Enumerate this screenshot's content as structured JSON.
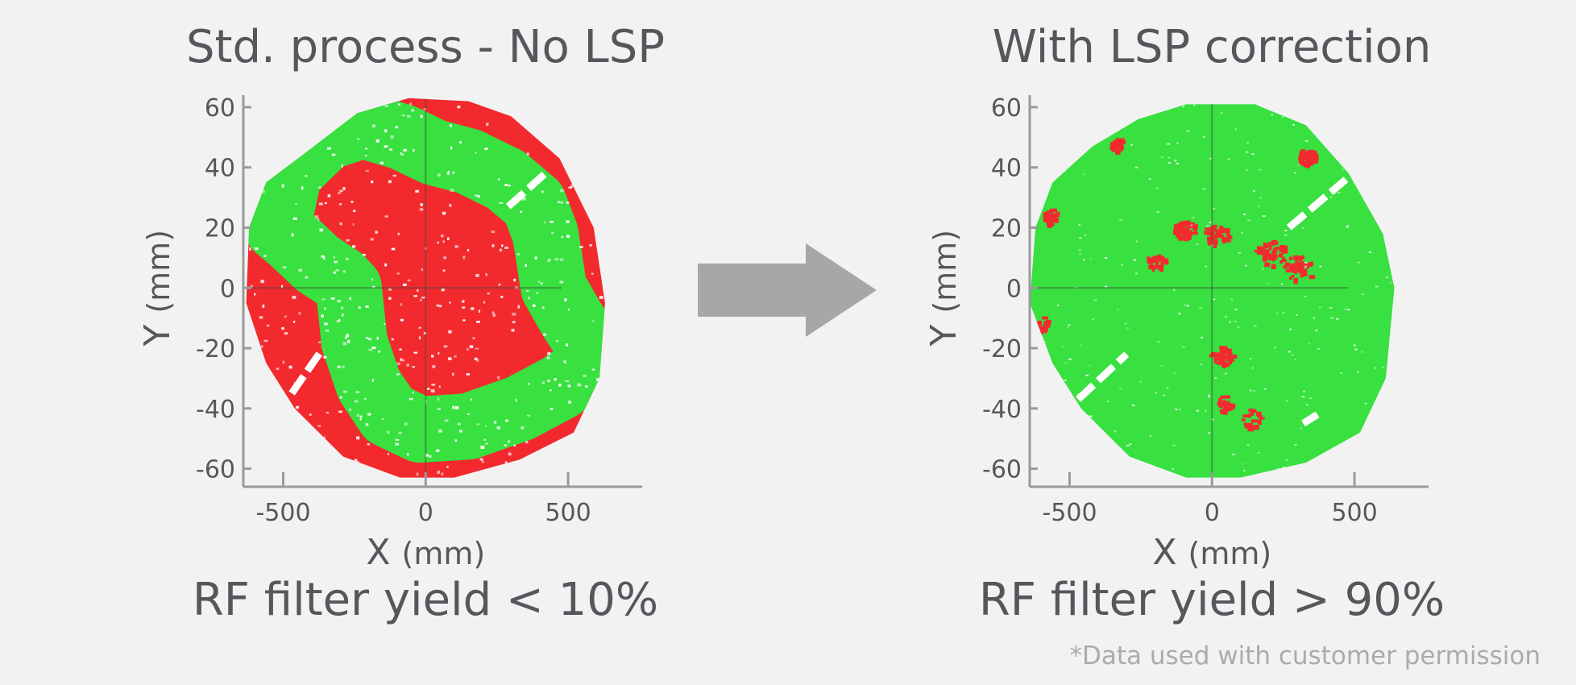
{
  "colors": {
    "background": "#f2f2f2",
    "fail": "#f22a2e",
    "pass": "#38e040",
    "arrow": "#a6a7a9",
    "axis": "#9a9a9a",
    "text": "#55575c",
    "footnote": "#a9abae"
  },
  "arrow": {
    "icon": "right-arrow-icon"
  },
  "footnote": "*Data used with customer permission",
  "chart_data": [
    {
      "type": "heatmap",
      "title": "Std. process - No LSP",
      "xlabel": "X",
      "xunit": "(mm)",
      "ylabel": "Y",
      "yunit": "(mm)",
      "xticks": [
        -500,
        0,
        500
      ],
      "yticks": [
        60,
        40,
        20,
        0,
        -20,
        -40,
        -60
      ],
      "xlim": [
        -640,
        760
      ],
      "ylim": [
        -66,
        64
      ],
      "legend": {
        "fail": "red",
        "pass": "green"
      },
      "wafer_outline": [
        [
          -560,
          35
        ],
        [
          -420,
          45
        ],
        [
          -240,
          58
        ],
        [
          -60,
          63
        ],
        [
          150,
          62
        ],
        [
          300,
          57
        ],
        [
          470,
          43
        ],
        [
          590,
          20
        ],
        [
          630,
          -5
        ],
        [
          610,
          -30
        ],
        [
          520,
          -48
        ],
        [
          330,
          -57
        ],
        [
          100,
          -63
        ],
        [
          -90,
          -63
        ],
        [
          -290,
          -56
        ],
        [
          -460,
          -40
        ],
        [
          -560,
          -25
        ],
        [
          -630,
          -5
        ],
        [
          -620,
          20
        ]
      ],
      "pass_region": [
        [
          -520,
          20
        ],
        [
          -480,
          38
        ],
        [
          -350,
          50
        ],
        [
          -220,
          54
        ],
        [
          -80,
          50
        ],
        [
          30,
          45
        ],
        [
          150,
          42
        ],
        [
          280,
          36
        ],
        [
          380,
          28
        ],
        [
          420,
          18
        ],
        [
          450,
          0
        ],
        [
          510,
          -10
        ],
        [
          565,
          -18
        ],
        [
          560,
          -27
        ],
        [
          470,
          -33
        ],
        [
          330,
          -40
        ],
        [
          150,
          -46
        ],
        [
          -20,
          -47
        ],
        [
          -130,
          -42
        ],
        [
          -200,
          -32
        ],
        [
          -250,
          -18
        ],
        [
          -270,
          0
        ],
        [
          -300,
          3
        ],
        [
          -380,
          8
        ],
        [
          -470,
          16
        ]
      ],
      "pass_width_mm": 22,
      "yield_text": "RF filter yield < 10%"
    },
    {
      "type": "heatmap",
      "title": "With LSP correction",
      "xlabel": "X",
      "xunit": "(mm)",
      "ylabel": "Y",
      "yunit": "(mm)",
      "xticks": [
        -500,
        0,
        500
      ],
      "yticks": [
        60,
        40,
        20,
        0,
        -20,
        -40,
        -60
      ],
      "xlim": [
        -640,
        760
      ],
      "ylim": [
        -66,
        64
      ],
      "legend": {
        "fail": "red",
        "pass": "green"
      },
      "wafer_outline": [
        [
          -560,
          35
        ],
        [
          -420,
          47
        ],
        [
          -260,
          56
        ],
        [
          -90,
          61
        ],
        [
          150,
          61
        ],
        [
          330,
          54
        ],
        [
          480,
          38
        ],
        [
          600,
          18
        ],
        [
          640,
          0
        ],
        [
          610,
          -30
        ],
        [
          520,
          -48
        ],
        [
          330,
          -58
        ],
        [
          100,
          -63
        ],
        [
          -90,
          -63
        ],
        [
          -290,
          -56
        ],
        [
          -460,
          -40
        ],
        [
          -560,
          -25
        ],
        [
          -640,
          -5
        ],
        [
          -620,
          20
        ]
      ],
      "fail_clusters": [
        {
          "x": -100,
          "y": 20,
          "r": 40,
          "density": 0.55
        },
        {
          "x": 10,
          "y": 18,
          "r": 45,
          "density": 0.45
        },
        {
          "x": 200,
          "y": 12,
          "r": 55,
          "density": 0.4
        },
        {
          "x": 300,
          "y": 7,
          "r": 55,
          "density": 0.35
        },
        {
          "x": -200,
          "y": 9,
          "r": 35,
          "density": 0.35
        },
        {
          "x": 30,
          "y": -22,
          "r": 40,
          "density": 0.45
        },
        {
          "x": 40,
          "y": -38,
          "r": 30,
          "density": 0.4
        },
        {
          "x": 130,
          "y": -43,
          "r": 40,
          "density": 0.25
        },
        {
          "x": 330,
          "y": 44,
          "r": 30,
          "density": 0.85
        },
        {
          "x": -340,
          "y": 48,
          "r": 20,
          "density": 0.55
        },
        {
          "x": -570,
          "y": 24,
          "r": 25,
          "density": 0.6
        },
        {
          "x": -600,
          "y": -12,
          "r": 20,
          "density": 0.5
        }
      ],
      "yield_text": "RF filter yield > 90%"
    }
  ]
}
